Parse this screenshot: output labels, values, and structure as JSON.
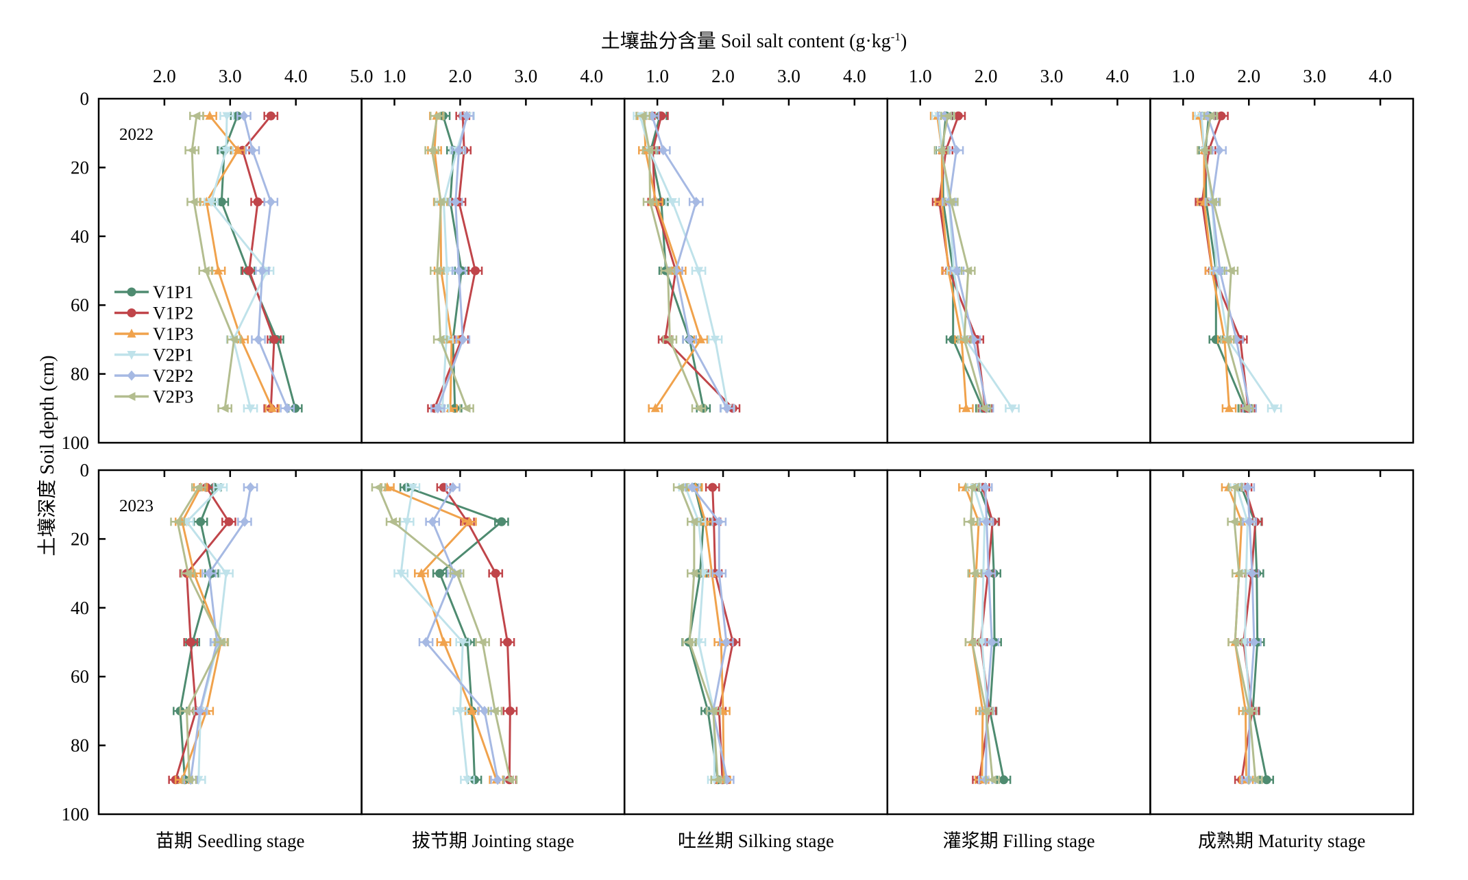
{
  "chart_data": {
    "type": "line",
    "title": "土壤盐分含量 Soil salt content (g·kg",
    "title_superscript": "-1",
    "title_suffix": ")",
    "xlabel": "土壤盐分含量 Soil salt content (g·kg-1)",
    "ylabel": "土壤深度 Soil depth (cm)",
    "ylim": [
      0,
      100
    ],
    "y_ticks": [
      "0",
      "20",
      "40",
      "60",
      "80",
      "100"
    ],
    "depths": [
      5,
      15,
      30,
      50,
      70,
      90
    ],
    "grid": false,
    "legend_placement": "left-middle of first panel (2022)",
    "legend": [
      {
        "name": "V1P1",
        "color": "#4e8b70",
        "marker": "circle"
      },
      {
        "name": "V1P2",
        "color": "#c0454a",
        "marker": "circle"
      },
      {
        "name": "V1P3",
        "color": "#f0a24c",
        "marker": "triangle-up"
      },
      {
        "name": "V2P1",
        "color": "#bfe2ea",
        "marker": "triangle-down"
      },
      {
        "name": "V2P2",
        "color": "#a6b9e3",
        "marker": "diamond"
      },
      {
        "name": "V2P3",
        "color": "#b3bd8f",
        "marker": "triangle-left"
      }
    ],
    "years": [
      "2022",
      "2023"
    ],
    "stages": [
      {
        "label": "苗期 Seedling stage",
        "xlim": [
          1.0,
          5.0
        ],
        "x_ticks": [
          "2.0",
          "3.0",
          "4.0",
          "5.0"
        ],
        "x_tick_values": [
          2.0,
          3.0,
          4.0,
          5.0
        ]
      },
      {
        "label": "拔节期 Jointing stage",
        "xlim": [
          0.5,
          4.5
        ],
        "x_ticks": [
          "1.0",
          "2.0",
          "3.0",
          "4.0"
        ],
        "x_tick_values": [
          1.0,
          2.0,
          3.0,
          4.0
        ]
      },
      {
        "label": "吐丝期 Silking stage",
        "xlim": [
          0.5,
          4.5
        ],
        "x_ticks": [
          "1.0",
          "2.0",
          "3.0",
          "4.0"
        ],
        "x_tick_values": [
          1.0,
          2.0,
          3.0,
          4.0
        ]
      },
      {
        "label": "灌浆期 Filling stage",
        "xlim": [
          0.5,
          4.5
        ],
        "x_ticks": [
          "1.0",
          "2.0",
          "3.0",
          "4.0"
        ],
        "x_tick_values": [
          1.0,
          2.0,
          3.0,
          4.0
        ]
      },
      {
        "label": "成熟期 Maturity stage",
        "xlim": [
          0.5,
          4.5
        ],
        "x_ticks": [
          "1.0",
          "2.0",
          "3.0",
          "4.0"
        ],
        "x_tick_values": [
          1.0,
          2.0,
          3.0,
          4.0
        ]
      }
    ],
    "series": {
      "2022": [
        {
          "V1P1": [
            3.11,
            2.91,
            2.87,
            3.27,
            3.71,
            3.99
          ],
          "V1P2": [
            3.62,
            3.19,
            3.42,
            3.29,
            3.67,
            3.62
          ],
          "V1P3": [
            2.69,
            3.12,
            2.64,
            2.82,
            3.17,
            3.64
          ],
          "V2P1": [
            2.95,
            2.94,
            2.71,
            3.56,
            3.05,
            3.31
          ],
          "V2P2": [
            3.21,
            3.34,
            3.62,
            3.49,
            3.43,
            3.87
          ],
          "V2P3": [
            2.49,
            2.42,
            2.45,
            2.63,
            3.06,
            2.92
          ]
        },
        {
          "V1P1": [
            1.74,
            1.9,
            1.85,
            2.02,
            1.89,
            1.92
          ],
          "V1P2": [
            2.04,
            2.06,
            1.98,
            2.23,
            2.02,
            1.61
          ],
          "V1P3": [
            1.64,
            1.61,
            1.7,
            1.71,
            1.87,
            1.85
          ],
          "V2P1": [
            2.11,
            1.95,
            1.75,
            1.8,
            1.79,
            1.73
          ],
          "V2P2": [
            2.1,
            1.98,
            1.93,
            1.98,
            2.04,
            1.66
          ],
          "V2P3": [
            1.65,
            1.57,
            1.71,
            1.65,
            1.7,
            2.1
          ]
        },
        {
          "V1P1": [
            1.04,
            0.9,
            1.06,
            1.13,
            1.49,
            1.7
          ],
          "V1P2": [
            1.06,
            0.93,
            0.96,
            1.28,
            1.12,
            2.15
          ],
          "V1P3": [
            0.8,
            0.82,
            0.98,
            1.33,
            1.66,
            0.97
          ],
          "V2P1": [
            0.74,
            0.88,
            1.23,
            1.63,
            1.88,
            2.07
          ],
          "V2P2": [
            0.92,
            1.09,
            1.59,
            1.28,
            1.49,
            2.06
          ],
          "V2P3": [
            0.78,
            0.88,
            0.89,
            1.16,
            1.19,
            1.63
          ]
        },
        {
          "V1P1": [
            1.39,
            1.34,
            1.35,
            1.5,
            1.5,
            1.95
          ],
          "V1P2": [
            1.58,
            1.39,
            1.29,
            1.44,
            1.86,
            1.99
          ],
          "V1P3": [
            1.26,
            1.33,
            1.33,
            1.43,
            1.63,
            1.7
          ],
          "V2P1": [
            1.28,
            1.33,
            1.44,
            1.51,
            1.69,
            2.4
          ],
          "V2P2": [
            1.37,
            1.55,
            1.44,
            1.56,
            1.81,
            2.01
          ],
          "V2P3": [
            1.42,
            1.32,
            1.47,
            1.73,
            1.67,
            1.97
          ]
        },
        {
          "V1P1": [
            1.39,
            1.34,
            1.35,
            1.5,
            1.5,
            1.94
          ],
          "V1P2": [
            1.58,
            1.39,
            1.29,
            1.44,
            1.87,
            1.99
          ],
          "V1P3": [
            1.25,
            1.32,
            1.32,
            1.44,
            1.63,
            1.7
          ],
          "V2P1": [
            1.28,
            1.32,
            1.44,
            1.51,
            1.68,
            2.39
          ],
          "V2P2": [
            1.37,
            1.55,
            1.44,
            1.56,
            1.81,
            2.01
          ],
          "V2P3": [
            1.42,
            1.32,
            1.46,
            1.73,
            1.67,
            1.96
          ]
        }
      ],
      "2023": [
        {
          "V1P1": [
            2.76,
            2.55,
            2.72,
            2.43,
            2.24,
            2.31
          ],
          "V1P2": [
            2.64,
            2.98,
            2.34,
            2.4,
            2.48,
            2.17
          ],
          "V1P3": [
            2.55,
            2.27,
            2.45,
            2.86,
            2.64,
            2.27
          ],
          "V2P1": [
            2.85,
            2.34,
            2.94,
            2.82,
            2.55,
            2.52
          ],
          "V2P2": [
            3.31,
            3.22,
            2.68,
            2.8,
            2.54,
            2.4
          ],
          "V2P3": [
            2.52,
            2.2,
            2.36,
            2.87,
            2.34,
            2.38
          ]
        },
        {
          "V1P1": [
            1.19,
            2.63,
            1.69,
            2.11,
            2.18,
            2.22
          ],
          "V1P2": [
            1.75,
            2.11,
            2.54,
            2.72,
            2.76,
            2.75
          ],
          "V1P3": [
            0.89,
            2.14,
            1.41,
            1.75,
            2.18,
            2.55
          ],
          "V2P1": [
            1.28,
            1.19,
            1.1,
            2.04,
            2.0,
            2.11
          ],
          "V2P2": [
            1.89,
            1.58,
            1.91,
            1.48,
            2.37,
            2.57
          ],
          "V2P3": [
            0.76,
            0.98,
            1.95,
            2.34,
            2.53,
            2.76
          ]
        },
        {
          "V1P1": [
            1.57,
            1.7,
            1.65,
            1.48,
            1.77,
            1.92
          ],
          "V1P2": [
            1.84,
            1.86,
            1.88,
            2.15,
            1.94,
            1.99
          ],
          "V1P3": [
            1.58,
            1.73,
            1.83,
            1.97,
            2.0,
            2.01
          ],
          "V2P1": [
            1.43,
            1.63,
            1.7,
            1.63,
            1.86,
            1.87
          ],
          "V2P2": [
            1.53,
            1.94,
            1.94,
            2.05,
            1.85,
            2.06
          ],
          "V2P3": [
            1.35,
            1.56,
            1.56,
            1.49,
            1.85,
            1.92
          ]
        },
        {
          "V1P1": [
            1.9,
            2.09,
            2.12,
            2.13,
            2.06,
            2.27
          ],
          "V1P2": [
            1.95,
            2.1,
            2.03,
            1.92,
            2.05,
            1.9
          ],
          "V1P3": [
            1.69,
            1.89,
            1.85,
            1.79,
            1.95,
            1.94
          ],
          "V2P1": [
            1.82,
            1.98,
            1.96,
            1.94,
            2.02,
            1.99
          ],
          "V2P2": [
            1.99,
            2.01,
            2.04,
            2.09,
            2.01,
            2.0
          ],
          "V2P3": [
            1.79,
            1.77,
            1.83,
            1.79,
            2.0,
            2.1
          ]
        },
        {
          "V1P1": [
            1.89,
            2.09,
            2.12,
            2.13,
            2.06,
            2.27
          ],
          "V1P2": [
            1.94,
            2.1,
            2.04,
            1.92,
            2.05,
            1.89
          ],
          "V1P3": [
            1.69,
            1.89,
            1.85,
            1.79,
            1.95,
            1.96
          ],
          "V2P1": [
            1.82,
            1.98,
            1.96,
            1.94,
            2.02,
            1.99
          ],
          "V2P2": [
            1.98,
            2.01,
            2.05,
            2.08,
            2.01,
            2.0
          ],
          "V2P3": [
            1.79,
            1.78,
            1.85,
            1.79,
            2.01,
            2.1
          ]
        }
      ]
    },
    "error_bar_halfwidth_typical": 0.1
  }
}
